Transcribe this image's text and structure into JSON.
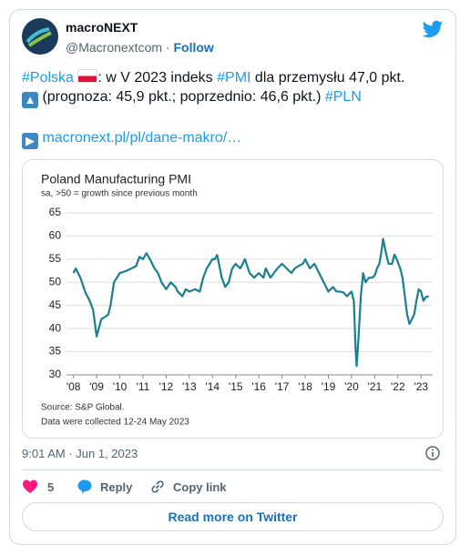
{
  "tweet": {
    "user_name": "macroNEXT",
    "handle": "@Macronextcom",
    "separator": "·",
    "follow": "Follow",
    "text": {
      "hashtag_1": "#Polska",
      "part_1": ": w V 2023 indeks ",
      "hashtag_2": "#PMI",
      "part_2": " dla przemysłu 47,0 pkt.",
      "part_3": " (prognoza: 45,9 pkt.; poprzednio: 46,6 pkt.) ",
      "hashtag_3": "#PLN",
      "link": "macronext.pl/pl/dane-makro/…"
    },
    "timestamp": "9:01 AM · Jun 1, 2023",
    "likes": "5",
    "reply": "Reply",
    "copy_link": "Copy link",
    "read_more": "Read more on Twitter"
  },
  "chart_data": {
    "type": "line",
    "title": "Poland Manufacturing PMI",
    "subtitle": "sa, >50 = growth since previous month",
    "source": "Source: S&P Global.",
    "note": "Data were collected 12-24 May 2023",
    "color": "#1a7f8e",
    "grid": true,
    "xlim": [
      2007.7,
      2023.5
    ],
    "ylim": [
      30,
      65
    ],
    "yticks": [
      30,
      35,
      40,
      45,
      50,
      55,
      60,
      65
    ],
    "xticks": [
      {
        "value": 2008,
        "label": "'08"
      },
      {
        "value": 2009,
        "label": "'09"
      },
      {
        "value": 2010,
        "label": "'10"
      },
      {
        "value": 2011,
        "label": "'11"
      },
      {
        "value": 2012,
        "label": "'12"
      },
      {
        "value": 2013,
        "label": "'13"
      },
      {
        "value": 2014,
        "label": "'14"
      },
      {
        "value": 2015,
        "label": "'15"
      },
      {
        "value": 2016,
        "label": "'16"
      },
      {
        "value": 2017,
        "label": "'17"
      },
      {
        "value": 2018,
        "label": "'18"
      },
      {
        "value": 2019,
        "label": "'19"
      },
      {
        "value": 2020,
        "label": "'20"
      },
      {
        "value": 2021,
        "label": "'21"
      },
      {
        "value": 2022,
        "label": "'22"
      },
      {
        "value": 2023,
        "label": "'23"
      }
    ],
    "x": [
      2008.0,
      2008.1,
      2008.3,
      2008.5,
      2008.7,
      2008.85,
      2009.0,
      2009.2,
      2009.5,
      2009.6,
      2009.75,
      2010.0,
      2010.3,
      2010.5,
      2010.7,
      2010.85,
      2011.0,
      2011.15,
      2011.3,
      2011.5,
      2011.65,
      2011.8,
      2012.0,
      2012.2,
      2012.4,
      2012.5,
      2012.7,
      2012.85,
      2013.0,
      2013.25,
      2013.45,
      2013.6,
      2013.75,
      2014.0,
      2014.1,
      2014.2,
      2014.4,
      2014.55,
      2014.7,
      2014.85,
      2015.0,
      2015.2,
      2015.4,
      2015.6,
      2015.8,
      2016.0,
      2016.2,
      2016.3,
      2016.5,
      2016.65,
      2016.8,
      2017.0,
      2017.2,
      2017.4,
      2017.55,
      2017.7,
      2017.9,
      2018.0,
      2018.2,
      2018.4,
      2018.6,
      2018.8,
      2019.0,
      2019.2,
      2019.35,
      2019.5,
      2019.65,
      2019.8,
      2020.0,
      2020.1,
      2020.17,
      2020.22,
      2020.3,
      2020.4,
      2020.5,
      2020.6,
      2020.75,
      2020.9,
      2021.0,
      2021.1,
      2021.2,
      2021.3,
      2021.36,
      2021.5,
      2021.6,
      2021.75,
      2021.85,
      2021.95,
      2022.1,
      2022.2,
      2022.3,
      2022.4,
      2022.5,
      2022.6,
      2022.7,
      2022.8,
      2022.9,
      2023.0,
      2023.1,
      2023.2,
      2023.33
    ],
    "values": [
      52,
      53,
      51,
      48,
      46,
      44,
      38.3,
      42,
      43,
      45,
      50,
      52,
      52.5,
      53,
      53.5,
      55.5,
      55,
      56.3,
      55,
      53,
      52,
      50,
      48.5,
      50,
      49,
      48,
      47,
      48.5,
      48,
      48.5,
      48,
      51,
      53,
      55,
      55,
      55.9,
      51,
      49,
      50,
      53,
      54,
      53,
      55,
      52,
      51,
      52,
      51,
      53,
      51,
      52,
      53,
      54,
      53,
      52,
      53,
      53.5,
      54,
      55,
      53,
      54,
      52,
      50,
      48,
      49,
      48,
      48,
      47.8,
      47,
      48,
      46,
      36,
      31.9,
      38,
      47,
      52,
      50,
      51,
      51,
      51.5,
      53,
      54,
      57,
      59.4,
      56,
      54,
      54,
      56,
      55,
      53,
      51,
      47,
      43,
      41,
      42,
      43,
      46,
      48.5,
      48,
      46,
      46.8,
      47
    ]
  }
}
